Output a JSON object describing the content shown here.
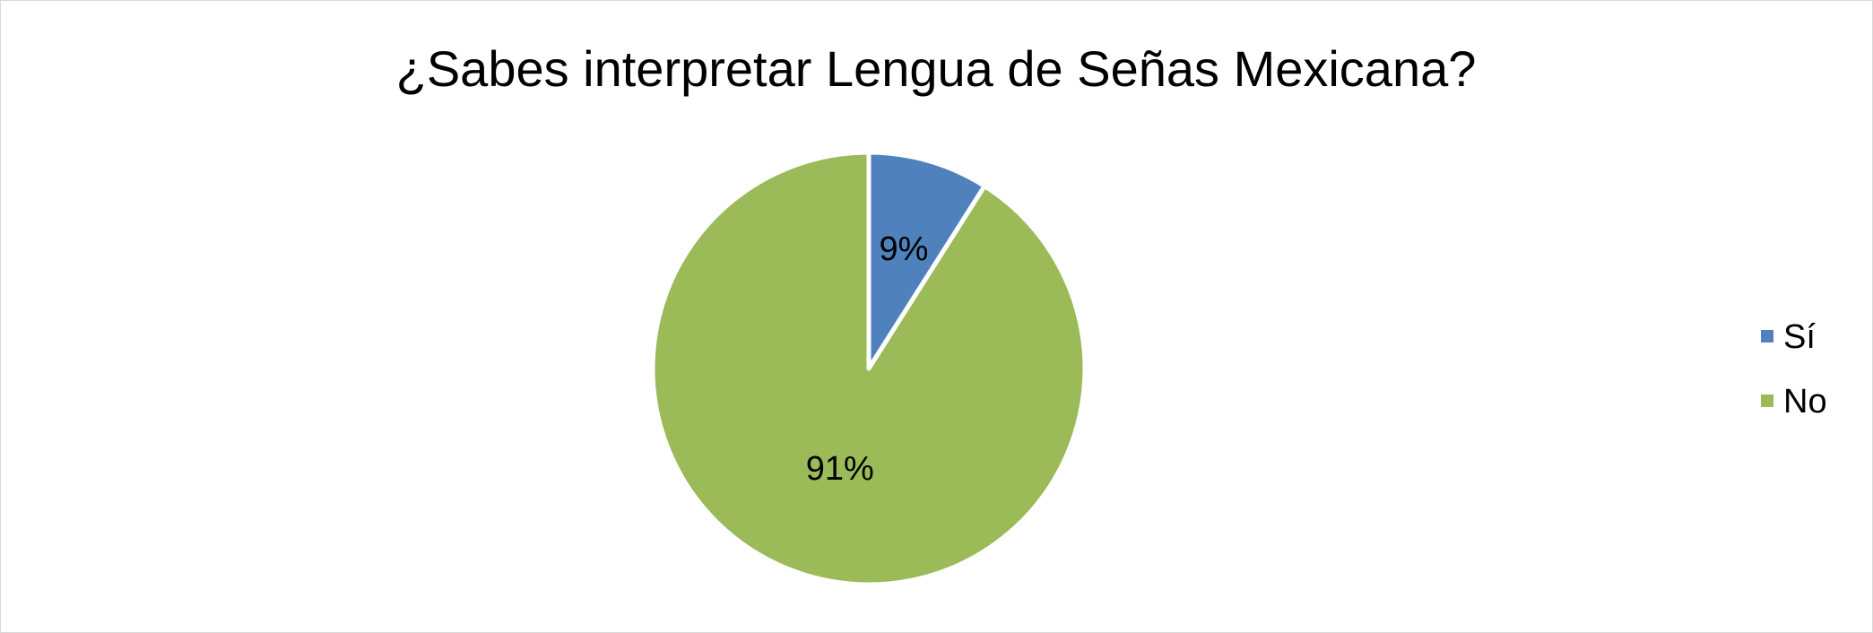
{
  "chart_data": {
    "type": "pie",
    "title": "¿Sabes interpretar Lengua de Señas Mexicana?",
    "categories": [
      "Sí",
      "No"
    ],
    "values": [
      9,
      91
    ],
    "data_labels": [
      "9%",
      "91%"
    ],
    "colors": [
      "#4f81bd",
      "#9bbb59"
    ],
    "start_angle_deg": 0,
    "direction": "clockwise",
    "legend": {
      "position": "right",
      "entries": [
        "Sí",
        "No"
      ]
    }
  }
}
